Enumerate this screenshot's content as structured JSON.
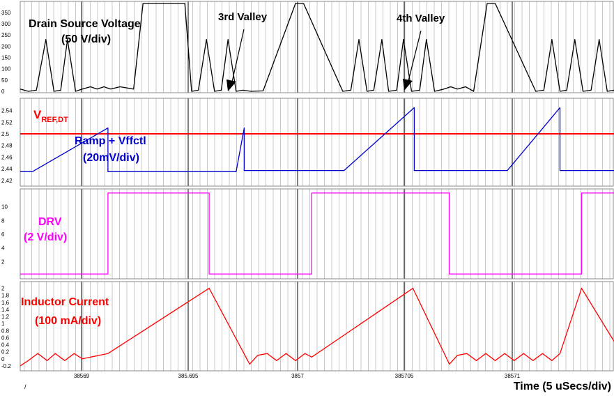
{
  "chart_data": {
    "type": "line",
    "x_axis": {
      "title": "Time (5 uSecs/div)",
      "tick_labels": [
        "38569",
        "385.695",
        "3857",
        "385705",
        "38571"
      ],
      "stray_mark": "/"
    },
    "panels": [
      {
        "id": "drain_source_voltage",
        "title": "Drain Source Voltage",
        "scale": "(50 V/div)",
        "color": "#000000",
        "y_ticks": [
          "0",
          "50",
          "100",
          "150",
          "200",
          "250",
          "300",
          "350"
        ],
        "ylim": [
          0,
          390
        ],
        "annotations": [
          "3rd Valley",
          "4th Valley"
        ],
        "series": [
          {
            "name": "Drain Source Voltage",
            "x": [
              0.0,
              0.3,
              0.6,
              0.95,
              1.25,
              1.5,
              1.75,
              2.05,
              2.3,
              2.6,
              2.85,
              3.1,
              3.35,
              3.7,
              4.2,
              4.55,
              6.1,
              6.35,
              6.6,
              6.9,
              7.2,
              7.45,
              7.7,
              8.0,
              8.25,
              8.55,
              9.0,
              10.2,
              10.5,
              11.95,
              12.25,
              12.55,
              12.85,
              13.1,
              13.4,
              13.65,
              13.95,
              14.2,
              14.5,
              14.8,
              15.05,
              15.35,
              15.7,
              15.95,
              16.2,
              16.5,
              16.8,
              17.3,
              17.6,
              19.1,
              19.4,
              19.7,
              20.0,
              20.25,
              20.55,
              20.85,
              21.15,
              21.45,
              21.75,
              22.0
            ],
            "y": [
              10,
              0,
              5,
              230,
              0,
              5,
              230,
              0,
              10,
              20,
              10,
              20,
              10,
              20,
              10,
              390,
              390,
              0,
              5,
              230,
              0,
              5,
              230,
              0,
              5,
              0,
              2,
              390,
              390,
              0,
              5,
              230,
              0,
              5,
              230,
              0,
              5,
              230,
              0,
              5,
              230,
              0,
              10,
              20,
              10,
              20,
              0,
              390,
              390,
              0,
              5,
              230,
              0,
              5,
              230,
              0,
              5,
              230,
              0,
              5
            ]
          }
        ]
      },
      {
        "id": "ramp_vffctl",
        "title": "Ramp + Vffctl",
        "scale": "(20mV/div)",
        "color": "#0000cc",
        "reference_label": "V",
        "reference_subscript": "REF,DT",
        "reference_color": "#ff0000",
        "reference_value": 2.5,
        "y_ticks": [
          "2.42",
          "2.44",
          "2.46",
          "2.48",
          "2.5",
          "2.52",
          "2.54"
        ],
        "ylim": [
          2.415,
          2.555
        ],
        "series": [
          {
            "name": "Ramp + Vffctl",
            "x": [
              0.0,
              0.45,
              3.25,
              3.25,
              8.0,
              8.3,
              8.3,
              12.0,
              14.6,
              14.6,
              18.05,
              20.0,
              20.0,
              22.0
            ],
            "y": [
              2.435,
              2.435,
              2.51,
              2.435,
              2.435,
              2.51,
              2.437,
              2.437,
              2.545,
              2.437,
              2.437,
              2.545,
              2.437,
              2.437
            ]
          }
        ]
      },
      {
        "id": "drv",
        "title": "DRV",
        "scale": "(2 V/div)",
        "color": "#ff00ff",
        "y_ticks": [
          "2",
          "4",
          "6",
          "8",
          "10"
        ],
        "ylim": [
          -0.5,
          12.5
        ],
        "series": [
          {
            "name": "DRV",
            "x": [
              0.0,
              3.25,
              3.25,
              7.0,
              7.0,
              10.8,
              10.8,
              15.9,
              15.9,
              20.8,
              20.8,
              22.0
            ],
            "y": [
              0.2,
              0.2,
              12.0,
              12.0,
              0.2,
              0.2,
              12.0,
              12.0,
              0.2,
              0.2,
              12.0,
              12.0
            ]
          }
        ]
      },
      {
        "id": "inductor_current",
        "title": "Inductor Current",
        "scale": "(100 mA/div)",
        "color": "#ff0000",
        "y_ticks": [
          "-0.2",
          "0",
          "0.2",
          "0.4",
          "0.6",
          "0.8",
          "1",
          "1.2",
          "1.4",
          "1.6",
          "1.8",
          "2"
        ],
        "ylim": [
          -0.3,
          2.15
        ],
        "series": [
          {
            "name": "Inductor Current",
            "x": [
              0.0,
              0.3,
              0.65,
              1.0,
              1.3,
              1.65,
              2.0,
              2.3,
              3.25,
              7.0,
              8.5,
              8.8,
              9.15,
              9.5,
              9.85,
              10.2,
              10.55,
              10.8,
              14.55,
              15.9,
              16.2,
              16.55,
              16.9,
              17.25,
              17.6,
              17.95,
              18.3,
              18.65,
              19.0,
              19.35,
              19.7,
              20.0,
              20.8,
              22.0
            ],
            "y": [
              -0.2,
              -0.05,
              0.15,
              -0.05,
              0.15,
              -0.05,
              0.15,
              0.0,
              0.15,
              2.0,
              -0.15,
              0.1,
              0.15,
              -0.05,
              0.15,
              -0.05,
              0.15,
              0.05,
              2.0,
              -0.15,
              0.1,
              0.15,
              -0.05,
              0.15,
              -0.05,
              0.15,
              -0.05,
              0.15,
              -0.05,
              0.15,
              -0.05,
              0.15,
              2.0,
              0.5
            ]
          }
        ]
      }
    ]
  }
}
